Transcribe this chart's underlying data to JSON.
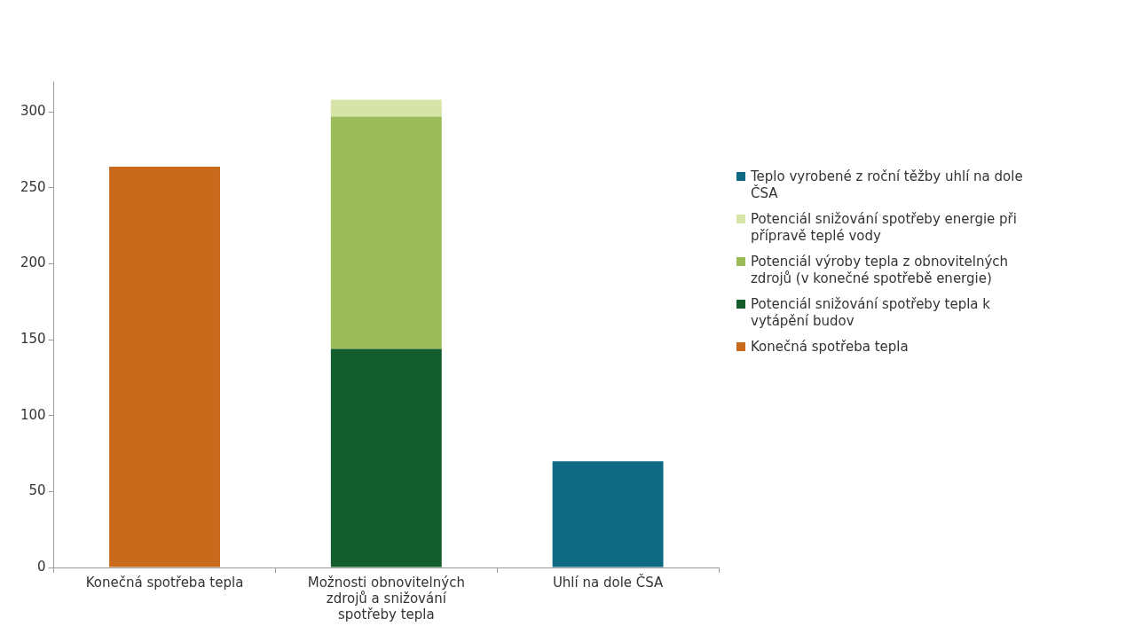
{
  "chart_data": {
    "type": "bar",
    "stacked": true,
    "categories": [
      "Konečná spotřeba tepla",
      "Možnosti obnovitelných zdrojů a snižování spotřeby tepla",
      "Uhlí na dole ČSA"
    ],
    "series": [
      {
        "name": "Konečná spotřeba tepla",
        "color": "#c8691c",
        "values": [
          264,
          null,
          null
        ]
      },
      {
        "name": "Potenciál snižování spotřeby tepla k vytápění budov",
        "color": "#145e2e",
        "values": [
          null,
          144,
          null
        ]
      },
      {
        "name": "Potenciál výroby tepla z obnovitelných zdrojů (v konečné spotřebě energie)",
        "color": "#9bbb59",
        "values": [
          null,
          153,
          null
        ]
      },
      {
        "name": "Potenciál snižování spotřeby energie při přípravě teplé vody",
        "color": "#d7e4a8",
        "values": [
          null,
          11,
          null
        ]
      },
      {
        "name": "Teplo vyrobené z roční těžby uhlí na dole ČSA",
        "color": "#0e6a82",
        "values": [
          null,
          null,
          70
        ]
      }
    ],
    "ylim": [
      0,
      320
    ],
    "yticks": [
      0,
      50,
      100,
      150,
      200,
      250,
      300
    ],
    "grid": false,
    "legend": "right"
  }
}
